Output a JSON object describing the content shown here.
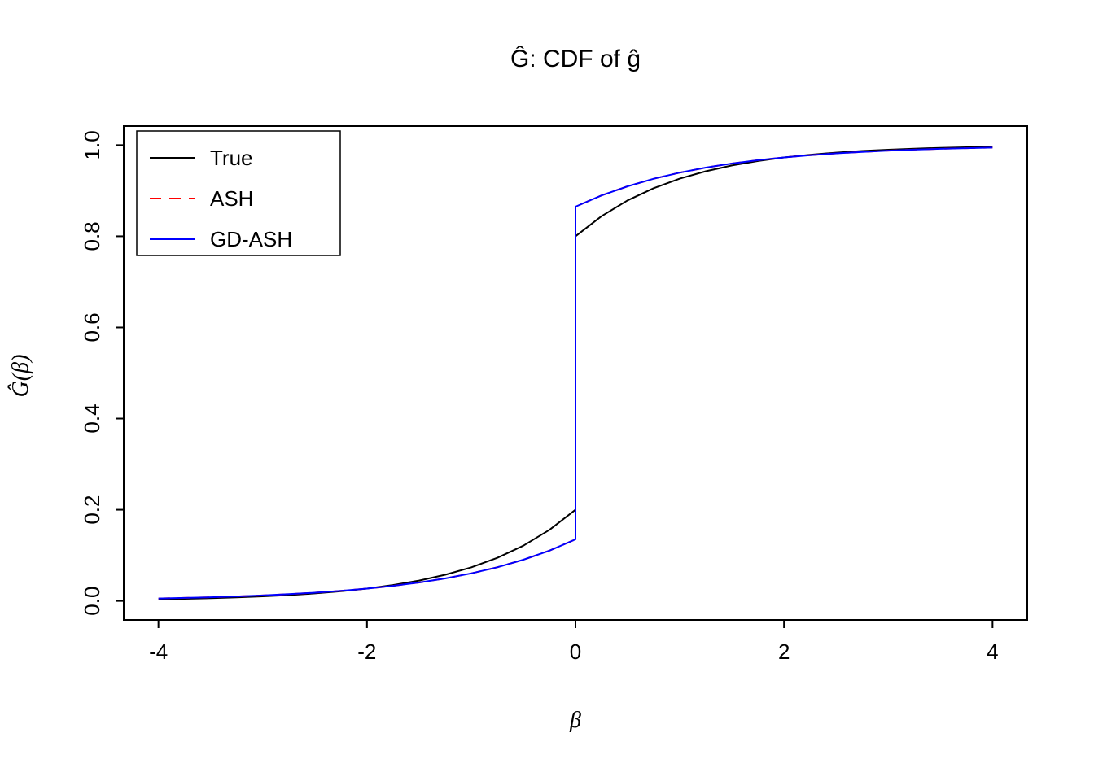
{
  "title": "Ĝ: CDF of ĝ",
  "x_axis_label": "β",
  "y_axis_label": "Ĝ(β)",
  "legend": [
    {
      "label": "True",
      "color": "#000000",
      "dasharray": "none"
    },
    {
      "label": "ASH",
      "color": "#ff0000",
      "dasharray": "14 10"
    },
    {
      "label": "GD-ASH",
      "color": "#0000ff",
      "dasharray": "none"
    }
  ],
  "chart_data": {
    "type": "line",
    "title": "Ĝ: CDF of ĝ",
    "xlabel": "β",
    "ylabel": "Ĝ(β)",
    "xlim": [
      -4.33,
      4.33
    ],
    "ylim": [
      -0.04,
      1.04
    ],
    "grid": false,
    "legend_position": "topleft",
    "x_ticks": [
      -4,
      -2,
      0,
      2,
      4
    ],
    "x_tick_labels": [
      "-4",
      "-2",
      "0",
      "2",
      "4"
    ],
    "y_ticks": [
      0.0,
      0.2,
      0.4,
      0.6,
      0.8,
      1.0
    ],
    "y_tick_labels": [
      "0.0",
      "0.2",
      "0.4",
      "0.6",
      "0.8",
      "1.0"
    ],
    "note": "All three curves are CDFs with a point mass (jump) at beta = 0. True jumps from 0.20 to 0.80; ASH and GD-ASH jump from 0.135 to 0.865 and nearly coincide everywhere.",
    "x": [
      -4,
      -3.75,
      -3.5,
      -3.25,
      -3,
      -2.75,
      -2.5,
      -2.25,
      -2,
      -1.75,
      -1.5,
      -1.25,
      -1,
      -0.75,
      -0.5,
      -0.25,
      0,
      0,
      0.25,
      0.5,
      0.75,
      1,
      1.25,
      1.5,
      1.75,
      2,
      2.25,
      2.5,
      2.75,
      3,
      3.25,
      3.5,
      3.75,
      4
    ],
    "series": [
      {
        "name": "True",
        "color": "#000000",
        "style": "solid",
        "dasharray": "none",
        "y": [
          0.0037,
          0.0047,
          0.006,
          0.0078,
          0.01,
          0.0128,
          0.0164,
          0.0211,
          0.0271,
          0.0348,
          0.0446,
          0.0573,
          0.0736,
          0.0945,
          0.1213,
          0.1558,
          0.2,
          0.8,
          0.8442,
          0.8787,
          0.9055,
          0.9264,
          0.9427,
          0.9554,
          0.9652,
          0.9729,
          0.9789,
          0.9836,
          0.9872,
          0.99,
          0.9922,
          0.994,
          0.9953,
          0.9963
        ]
      },
      {
        "name": "ASH",
        "color": "#ff0000",
        "style": "dashed",
        "dasharray": "14 10",
        "y": [
          0.0054,
          0.0066,
          0.0081,
          0.0099,
          0.0121,
          0.0148,
          0.0181,
          0.0221,
          0.027,
          0.033,
          0.0404,
          0.0494,
          0.0604,
          0.0738,
          0.0903,
          0.1104,
          0.135,
          0.865,
          0.8896,
          0.9097,
          0.9262,
          0.9396,
          0.9506,
          0.9596,
          0.967,
          0.973,
          0.9779,
          0.9819,
          0.9852,
          0.9879,
          0.9901,
          0.9919,
          0.9934,
          0.9946
        ]
      },
      {
        "name": "GD-ASH",
        "color": "#0000ff",
        "style": "solid",
        "dasharray": "none",
        "y": [
          0.0054,
          0.0066,
          0.0081,
          0.0099,
          0.0121,
          0.0148,
          0.0181,
          0.0221,
          0.027,
          0.033,
          0.0404,
          0.0494,
          0.0604,
          0.0738,
          0.0903,
          0.1104,
          0.135,
          0.865,
          0.8896,
          0.9097,
          0.9262,
          0.9396,
          0.9506,
          0.9596,
          0.967,
          0.973,
          0.9779,
          0.9819,
          0.9852,
          0.9879,
          0.9901,
          0.9919,
          0.9934,
          0.9946
        ]
      }
    ]
  }
}
